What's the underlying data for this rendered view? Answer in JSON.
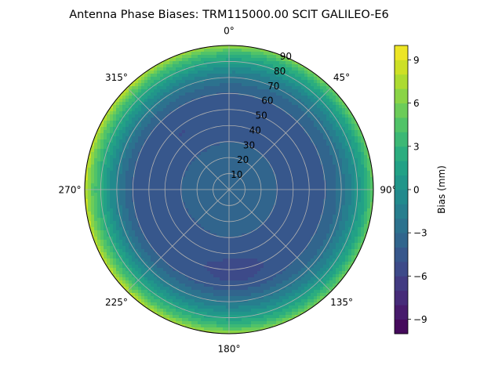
{
  "chart_data": {
    "type": "polar-contour",
    "title": "Antenna Phase Biases: TRM115000.00    SCIT GALILEO-E6",
    "theta_direction": "clockwise",
    "theta_zero": "top",
    "angle_tick_labels": [
      {
        "angle": 0,
        "label": "0°"
      },
      {
        "angle": 45,
        "label": "45°"
      },
      {
        "angle": 90,
        "label": "90°"
      },
      {
        "angle": 135,
        "label": "135°"
      },
      {
        "angle": 180,
        "label": "180°"
      },
      {
        "angle": 225,
        "label": "225°"
      },
      {
        "angle": 270,
        "label": "270°"
      },
      {
        "angle": 315,
        "label": "315°"
      }
    ],
    "rlim": [
      0,
      90
    ],
    "radial_tick_labels": [
      {
        "value": 10,
        "label": "10"
      },
      {
        "value": 20,
        "label": "20"
      },
      {
        "value": 30,
        "label": "30"
      },
      {
        "value": 40,
        "label": "40"
      },
      {
        "value": 50,
        "label": "50"
      },
      {
        "value": 60,
        "label": "60"
      },
      {
        "value": 70,
        "label": "70"
      },
      {
        "value": 80,
        "label": "80"
      },
      {
        "value": 90,
        "label": "90"
      }
    ],
    "grid": true,
    "colorbar": {
      "label": "Bias (mm)",
      "colormap": "viridis",
      "range": [
        -10,
        10
      ],
      "levels": 20,
      "tick_labels": [
        {
          "value": 9,
          "label": "9"
        },
        {
          "value": 6,
          "label": "6"
        },
        {
          "value": 3,
          "label": "3"
        },
        {
          "value": 0,
          "label": "0"
        },
        {
          "value": -3,
          "label": "−3"
        },
        {
          "value": -6,
          "label": "−6"
        },
        {
          "value": -9,
          "label": "−9"
        }
      ]
    },
    "bias_profile_by_radius": [
      {
        "r": 0,
        "bias": -3.2
      },
      {
        "r": 10,
        "bias": -3.3
      },
      {
        "r": 20,
        "bias": -3.6
      },
      {
        "r": 30,
        "bias": -4.0
      },
      {
        "r": 40,
        "bias": -4.3
      },
      {
        "r": 50,
        "bias": -4.4
      },
      {
        "r": 60,
        "bias": -4.0
      },
      {
        "r": 65,
        "bias": -3.2
      },
      {
        "r": 70,
        "bias": -2.0
      },
      {
        "r": 75,
        "bias": -0.5
      },
      {
        "r": 80,
        "bias": 1.5
      },
      {
        "r": 85,
        "bias": 3.5
      },
      {
        "r": 88,
        "bias": 5.5
      },
      {
        "r": 90,
        "bias": 7.0
      }
    ],
    "low_bias_regions": [
      {
        "azimuth": 175,
        "r": 52,
        "bias": -5.5
      },
      {
        "azimuth": 320,
        "r": 45,
        "bias": -5.0
      },
      {
        "azimuth": 230,
        "r": 45,
        "bias": -4.8
      }
    ],
    "high_edge_azimuth": 270
  }
}
